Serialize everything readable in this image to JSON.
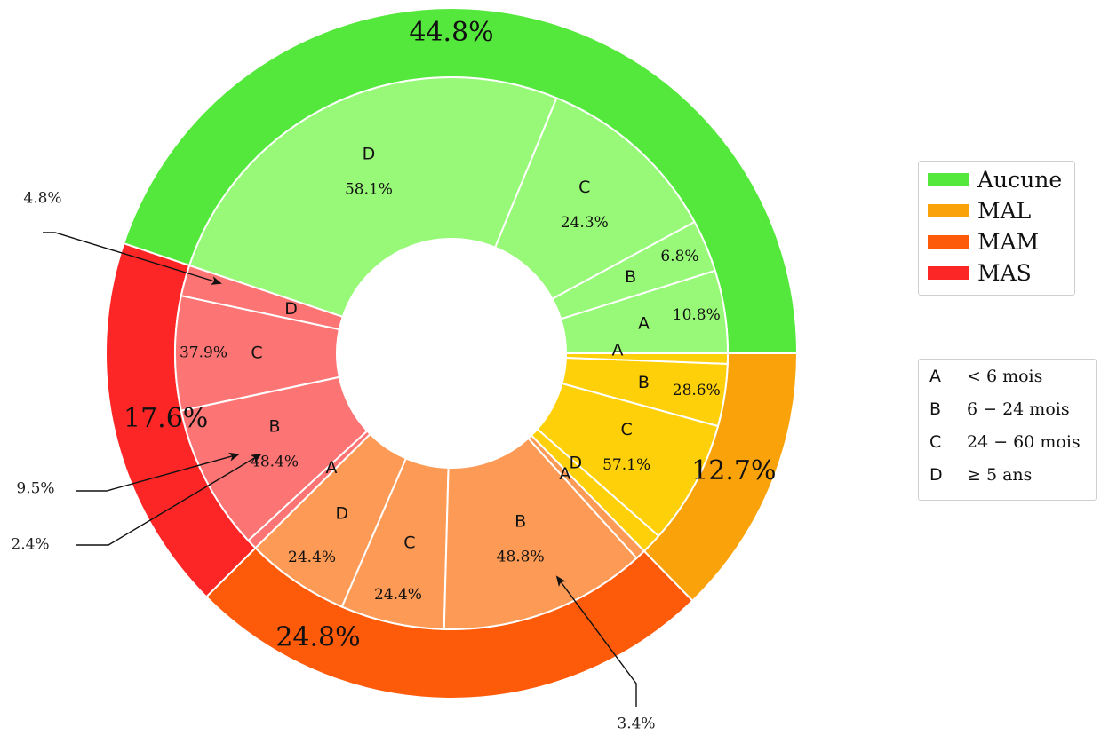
{
  "chart_data": {
    "type": "pie",
    "variant": "nested-donut",
    "outer": [
      {
        "name": "Aucune",
        "value": 44.8,
        "label": "44.8%",
        "color": "#55e83c"
      },
      {
        "name": "MAS",
        "value": 17.6,
        "label": "17.6%",
        "color": "#fd2626"
      },
      {
        "name": "MAM",
        "value": 24.8,
        "label": "24.8%",
        "color": "#fd5a0a"
      },
      {
        "name": "MAL",
        "value": 12.7,
        "label": "12.7%",
        "color": "#f9a20a"
      }
    ],
    "inner": [
      {
        "group": "Aucune",
        "segments": [
          {
            "letter": "A",
            "value": 10.8,
            "label": "10.8%"
          },
          {
            "letter": "B",
            "value": 6.8,
            "label": "6.8%"
          },
          {
            "letter": "C",
            "value": 24.3,
            "label": "24.3%"
          },
          {
            "letter": "D",
            "value": 58.1,
            "label": "58.1%"
          }
        ],
        "color": "#98f978"
      },
      {
        "group": "MAS",
        "segments": [
          {
            "letter": "D",
            "value": 10.3,
            "label": "10.3%"
          },
          {
            "letter": "C",
            "value": 37.9,
            "label": "37.9%"
          },
          {
            "letter": "B",
            "value": 48.4,
            "label": "48.4%"
          },
          {
            "letter": "A",
            "value": 3.4,
            "label": "3.4%"
          }
        ],
        "color": "#fd7474"
      },
      {
        "group": "MAM",
        "segments": [
          {
            "letter": "D",
            "value": 24.4,
            "label": "24.4%"
          },
          {
            "letter": "C",
            "value": 24.4,
            "label": "24.4%"
          },
          {
            "letter": "B",
            "value": 48.8,
            "label": "48.8%"
          },
          {
            "letter": "A",
            "value": 2.4,
            "label": "2.4%"
          }
        ],
        "color": "#fc9a56"
      },
      {
        "group": "MAL",
        "segments": [
          {
            "letter": "D",
            "value": 9.5,
            "label": "9.5%"
          },
          {
            "letter": "C",
            "value": 57.1,
            "label": "57.1%"
          },
          {
            "letter": "B",
            "value": 28.6,
            "label": "28.6%"
          },
          {
            "letter": "A",
            "value": 4.8,
            "label": "4.8%"
          }
        ],
        "color": "#fdd00a"
      }
    ],
    "legend": {
      "placement": "right",
      "entries": [
        {
          "name": "Aucune",
          "color": "#55e83c"
        },
        {
          "name": "MAL",
          "color": "#f9a20a"
        },
        {
          "name": "MAM",
          "color": "#fd5a0a"
        },
        {
          "name": "MAS",
          "color": "#fd2626"
        }
      ]
    },
    "key": [
      {
        "letter": "A",
        "description": "< 6 mois"
      },
      {
        "letter": "B",
        "description": "6 − 24 mois"
      },
      {
        "letter": "C",
        "description": "24 − 60 mois"
      },
      {
        "letter": "D",
        "description": "≥ 5 ans"
      }
    ],
    "callouts": [
      "4.8%",
      "9.5%",
      "2.4%",
      "3.4%"
    ]
  }
}
